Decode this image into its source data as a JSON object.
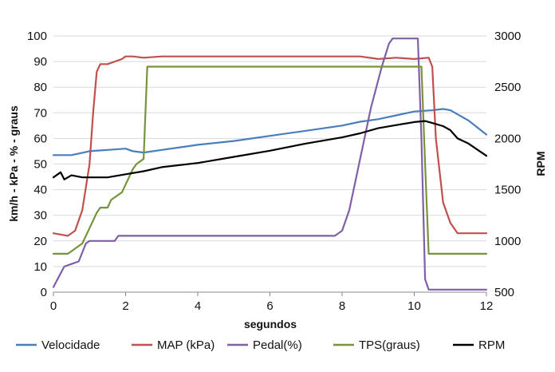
{
  "chart_data": {
    "type": "line",
    "title": "",
    "xlabel": "segundos",
    "ylabel_left": "km/h - kPa - % - graus",
    "ylabel_right": "RPM",
    "xlim": [
      0,
      12
    ],
    "ylim_left": [
      0,
      100
    ],
    "ylim_right": [
      500,
      3000
    ],
    "x_ticks": [
      "0",
      "2",
      "4",
      "6",
      "8",
      "10",
      "12"
    ],
    "y_left_ticks": [
      "0",
      "10",
      "20",
      "30",
      "40",
      "50",
      "60",
      "70",
      "80",
      "90",
      "100"
    ],
    "y_right_ticks": [
      "500",
      "1000",
      "1500",
      "2000",
      "2500",
      "3000"
    ],
    "grid": "horizontal",
    "legend_position": "bottom",
    "series": [
      {
        "name": "Velocidade",
        "axis": "left",
        "color": "#4a7ebb",
        "points": [
          [
            0,
            53.5
          ],
          [
            0.5,
            53.5
          ],
          [
            1,
            55
          ],
          [
            1.5,
            55.5
          ],
          [
            2,
            56
          ],
          [
            2.2,
            55
          ],
          [
            2.5,
            54.5
          ],
          [
            3,
            55.5
          ],
          [
            3.5,
            56.5
          ],
          [
            4,
            57.5
          ],
          [
            5,
            59
          ],
          [
            6,
            61
          ],
          [
            7,
            63
          ],
          [
            8,
            65
          ],
          [
            8.5,
            66.5
          ],
          [
            9,
            67.5
          ],
          [
            9.5,
            69
          ],
          [
            10,
            70.5
          ],
          [
            10.5,
            71
          ],
          [
            10.8,
            71.5
          ],
          [
            11,
            71
          ],
          [
            11.5,
            67
          ],
          [
            12,
            61.5
          ]
        ]
      },
      {
        "name": "MAP (kPa)",
        "axis": "left",
        "color": "#c0504d",
        "points": [
          [
            0,
            23
          ],
          [
            0.4,
            22
          ],
          [
            0.6,
            24
          ],
          [
            0.8,
            32
          ],
          [
            1.0,
            50
          ],
          [
            1.1,
            70
          ],
          [
            1.2,
            86
          ],
          [
            1.3,
            89
          ],
          [
            1.5,
            89
          ],
          [
            1.7,
            90
          ],
          [
            1.9,
            91
          ],
          [
            2.0,
            92
          ],
          [
            2.2,
            92
          ],
          [
            2.5,
            91.5
          ],
          [
            3,
            92
          ],
          [
            4,
            92
          ],
          [
            5,
            92
          ],
          [
            6,
            92
          ],
          [
            7,
            92
          ],
          [
            8,
            92
          ],
          [
            8.5,
            92
          ],
          [
            9,
            91
          ],
          [
            9.5,
            91.5
          ],
          [
            10,
            91
          ],
          [
            10.4,
            91.5
          ],
          [
            10.5,
            88
          ],
          [
            10.6,
            60
          ],
          [
            10.8,
            35
          ],
          [
            11,
            27
          ],
          [
            11.2,
            23
          ],
          [
            11.5,
            23
          ],
          [
            12,
            23
          ]
        ]
      },
      {
        "name": "Pedal(%)",
        "axis": "left",
        "color": "#7f5fa8",
        "points": [
          [
            0,
            2
          ],
          [
            0.15,
            6
          ],
          [
            0.3,
            10
          ],
          [
            0.5,
            11
          ],
          [
            0.7,
            12
          ],
          [
            0.9,
            19
          ],
          [
            1.0,
            20
          ],
          [
            1.5,
            20
          ],
          [
            1.7,
            20
          ],
          [
            1.8,
            22
          ],
          [
            2,
            22
          ],
          [
            3,
            22
          ],
          [
            5,
            22
          ],
          [
            7,
            22
          ],
          [
            7.8,
            22
          ],
          [
            8.0,
            24
          ],
          [
            8.2,
            32
          ],
          [
            8.5,
            52
          ],
          [
            8.8,
            72
          ],
          [
            9.1,
            88
          ],
          [
            9.3,
            97
          ],
          [
            9.4,
            99
          ],
          [
            9.8,
            99
          ],
          [
            10.1,
            99
          ],
          [
            10.2,
            60
          ],
          [
            10.3,
            5
          ],
          [
            10.4,
            1
          ],
          [
            12,
            1
          ]
        ]
      },
      {
        "name": "TPS(graus)",
        "axis": "left",
        "color": "#77933c",
        "points": [
          [
            0,
            15
          ],
          [
            0.4,
            15
          ],
          [
            0.6,
            17
          ],
          [
            0.8,
            19
          ],
          [
            1.0,
            25
          ],
          [
            1.2,
            31
          ],
          [
            1.3,
            33
          ],
          [
            1.5,
            33
          ],
          [
            1.6,
            36
          ],
          [
            1.9,
            39
          ],
          [
            2.0,
            42
          ],
          [
            2.2,
            48
          ],
          [
            2.3,
            50
          ],
          [
            2.4,
            51
          ],
          [
            2.5,
            52
          ],
          [
            2.6,
            88
          ],
          [
            3,
            88
          ],
          [
            5,
            88
          ],
          [
            7,
            88
          ],
          [
            9,
            88
          ],
          [
            10.2,
            88
          ],
          [
            10.3,
            50
          ],
          [
            10.4,
            15
          ],
          [
            12,
            15
          ]
        ]
      },
      {
        "name": "RPM",
        "axis": "right",
        "color": "#000000",
        "points": [
          [
            0,
            1620
          ],
          [
            0.2,
            1670
          ],
          [
            0.3,
            1600
          ],
          [
            0.5,
            1640
          ],
          [
            0.8,
            1620
          ],
          [
            1.5,
            1620
          ],
          [
            2.0,
            1650
          ],
          [
            2.5,
            1680
          ],
          [
            3,
            1720
          ],
          [
            4,
            1760
          ],
          [
            5,
            1820
          ],
          [
            6,
            1880
          ],
          [
            7,
            1950
          ],
          [
            8,
            2010
          ],
          [
            8.5,
            2050
          ],
          [
            9,
            2100
          ],
          [
            9.5,
            2130
          ],
          [
            10,
            2160
          ],
          [
            10.3,
            2170
          ],
          [
            10.5,
            2150
          ],
          [
            10.8,
            2120
          ],
          [
            11,
            2080
          ],
          [
            11.2,
            2000
          ],
          [
            11.5,
            1950
          ],
          [
            12,
            1830
          ]
        ]
      }
    ]
  }
}
